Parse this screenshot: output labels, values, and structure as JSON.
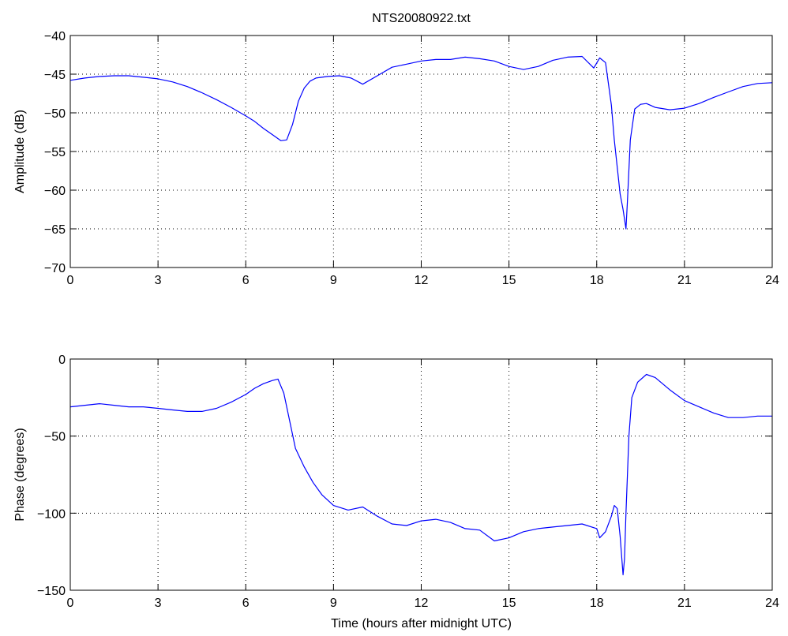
{
  "chart_data": [
    {
      "type": "line",
      "title": "NTS20080922.txt",
      "xlabel": "",
      "ylabel": "Amplitude (dB)",
      "xlim": [
        0,
        24
      ],
      "ylim": [
        -70,
        -40
      ],
      "xticks": [
        0,
        3,
        6,
        9,
        12,
        15,
        18,
        21,
        24
      ],
      "yticks": [
        -40,
        -45,
        -50,
        -55,
        -60,
        -65,
        -70
      ],
      "grid": true,
      "color": "#0000ff",
      "series": [
        {
          "x": [
            0,
            0.5,
            1,
            1.5,
            2,
            2.5,
            3,
            3.5,
            4,
            4.5,
            5,
            5.5,
            6,
            6.3,
            6.6,
            6.9,
            7.2,
            7.4,
            7.6,
            7.8,
            8.0,
            8.2,
            8.4,
            8.8,
            9.2,
            9.6,
            10,
            10.5,
            11,
            11.5,
            12,
            12.5,
            13,
            13.5,
            14,
            14.5,
            15,
            15.5,
            16,
            16.5,
            17,
            17.5,
            17.9,
            18.1,
            18.3,
            18.5,
            18.6,
            18.7,
            18.8,
            18.9,
            19.0,
            19.05,
            19.15,
            19.3,
            19.5,
            19.7,
            20,
            20.5,
            21,
            21.5,
            22,
            22.5,
            23,
            23.5,
            24
          ],
          "y": [
            -45.8,
            -45.5,
            -45.3,
            -45.2,
            -45.2,
            -45.4,
            -45.6,
            -46.0,
            -46.6,
            -47.4,
            -48.3,
            -49.3,
            -50.4,
            -51.1,
            -52.0,
            -52.8,
            -53.6,
            -53.5,
            -51.5,
            -48.5,
            -46.8,
            -45.9,
            -45.5,
            -45.3,
            -45.2,
            -45.5,
            -46.3,
            -45.2,
            -44.1,
            -43.7,
            -43.3,
            -43.1,
            -43.1,
            -42.8,
            -43.0,
            -43.3,
            -44.0,
            -44.4,
            -44.0,
            -43.2,
            -42.8,
            -42.7,
            -44.2,
            -42.9,
            -43.5,
            -49.0,
            -53.5,
            -57.0,
            -60.5,
            -62.5,
            -65.0,
            -61.5,
            -53.5,
            -49.5,
            -48.9,
            -48.8,
            -49.3,
            -49.6,
            -49.4,
            -48.8,
            -48.0,
            -47.3,
            -46.6,
            -46.2,
            -46.1
          ]
        }
      ]
    },
    {
      "type": "line",
      "title": "",
      "xlabel": "Time (hours after midnight UTC)",
      "ylabel": "Phase (degrees)",
      "xlim": [
        0,
        24
      ],
      "ylim": [
        -150,
        0
      ],
      "xticks": [
        0,
        3,
        6,
        9,
        12,
        15,
        18,
        21,
        24
      ],
      "yticks": [
        0,
        -50,
        -100,
        -150
      ],
      "grid": true,
      "color": "#0000ff",
      "series": [
        {
          "x": [
            0,
            0.5,
            1,
            1.5,
            2,
            2.5,
            3,
            3.5,
            4,
            4.5,
            5,
            5.5,
            6,
            6.3,
            6.6,
            6.9,
            7.1,
            7.3,
            7.5,
            7.7,
            8.0,
            8.3,
            8.6,
            9.0,
            9.5,
            10,
            10.5,
            11,
            11.5,
            12,
            12.5,
            13,
            13.5,
            14,
            14.5,
            15,
            15.5,
            16,
            16.5,
            17,
            17.5,
            18.0,
            18.1,
            18.3,
            18.5,
            18.6,
            18.7,
            18.8,
            18.9,
            18.95,
            19.0,
            19.1,
            19.2,
            19.4,
            19.7,
            20.0,
            20.5,
            21,
            21.5,
            22,
            22.5,
            23,
            23.5,
            24
          ],
          "y": [
            -31,
            -30,
            -29,
            -30,
            -31,
            -31,
            -32,
            -33,
            -34,
            -34,
            -32,
            -28,
            -23,
            -19,
            -16,
            -14,
            -13,
            -22,
            -40,
            -58,
            -70,
            -80,
            -88,
            -95,
            -98,
            -96,
            -102,
            -107,
            -108,
            -105,
            -104,
            -106,
            -110,
            -111,
            -118,
            -116,
            -112,
            -110,
            -109,
            -108,
            -107,
            -110,
            -116,
            -112,
            -102,
            -95,
            -97,
            -115,
            -140,
            -130,
            -100,
            -50,
            -25,
            -15,
            -10,
            -12,
            -20,
            -27,
            -31,
            -35,
            -38,
            -38,
            -37,
            -37
          ]
        }
      ]
    }
  ]
}
